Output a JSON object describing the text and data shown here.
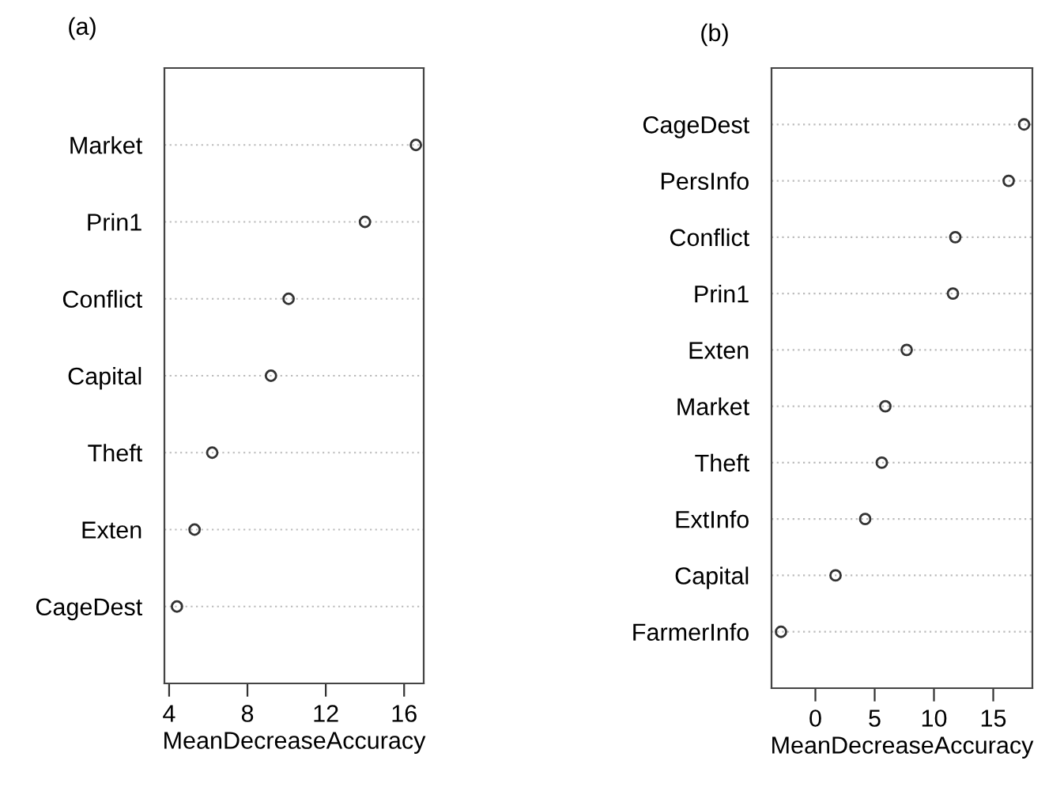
{
  "chart_data": [
    {
      "type": "scatter",
      "title": "(a)",
      "xlabel": "MeanDecreaseAccuracy",
      "categories": [
        "Market",
        "Prin1",
        "Conflict",
        "Capital",
        "Theft",
        "Exten",
        "CageDest"
      ],
      "series": [
        {
          "color": "#333333",
          "values": [
            16.6,
            14.0,
            10.1,
            9.2,
            6.2,
            5.3,
            4.4
          ]
        }
      ],
      "xlim": [
        3.76,
        17.0
      ],
      "xticks": [
        4,
        8,
        12,
        16
      ],
      "grid": "y",
      "marker": "circle",
      "orientation": "horizontal"
    },
    {
      "type": "scatter",
      "title": "(b)",
      "xlabel": "MeanDecreaseAccuracy",
      "categories": [
        "CageDest",
        "PersInfo",
        "Conflict",
        "Prin1",
        "Exten",
        "Market",
        "Theft",
        "ExtInfo",
        "Capital",
        "FarmerInfo"
      ],
      "series": [
        {
          "color": "#333333",
          "values": [
            17.6,
            16.3,
            11.8,
            11.6,
            7.7,
            5.9,
            5.6,
            4.2,
            1.7,
            -2.9
          ]
        }
      ],
      "xlim": [
        -3.7,
        18.3
      ],
      "xticks": [
        0,
        5,
        10,
        15
      ],
      "grid": "y",
      "marker": "circle",
      "orientation": "horizontal"
    }
  ]
}
